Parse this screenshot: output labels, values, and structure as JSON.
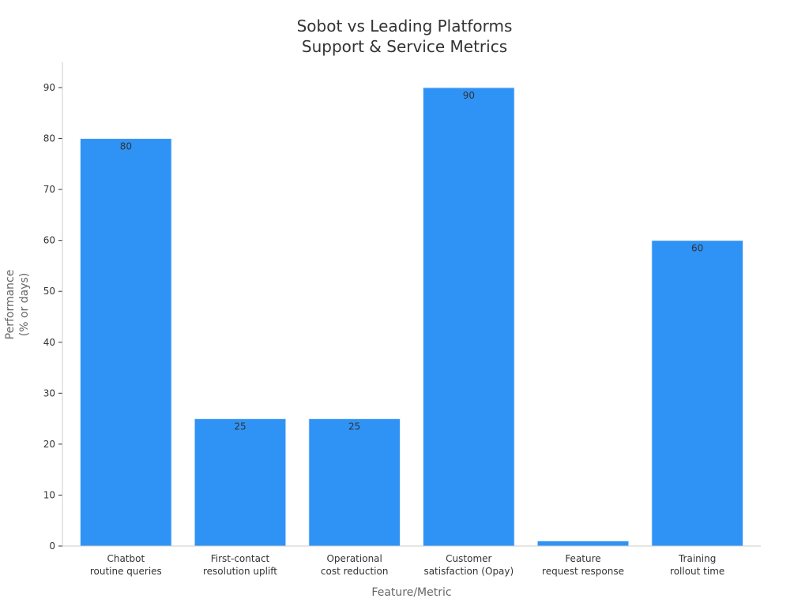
{
  "chart_data": {
    "type": "bar",
    "title_lines": [
      "Sobot vs Leading Platforms",
      "Support & Service Metrics"
    ],
    "xlabel": "Feature/Metric",
    "ylabel_lines": [
      "Performance",
      "(% or days)"
    ],
    "categories": [
      [
        "Chatbot",
        "routine queries"
      ],
      [
        "First-contact",
        "resolution uplift"
      ],
      [
        "Operational",
        "cost reduction"
      ],
      [
        "Customer",
        "satisfaction (Opay)"
      ],
      [
        "Feature",
        "request response"
      ],
      [
        "Training",
        "rollout time"
      ]
    ],
    "values": [
      80,
      25,
      25,
      90,
      1,
      60
    ],
    "data_labels": [
      "80",
      "25",
      "25",
      "90",
      "",
      "60"
    ],
    "ylim": [
      0,
      95
    ],
    "yticks": [
      0,
      10,
      20,
      30,
      40,
      50,
      60,
      70,
      80,
      90
    ],
    "grid": false,
    "legend": "none",
    "bar_color": "#2f93f6"
  }
}
